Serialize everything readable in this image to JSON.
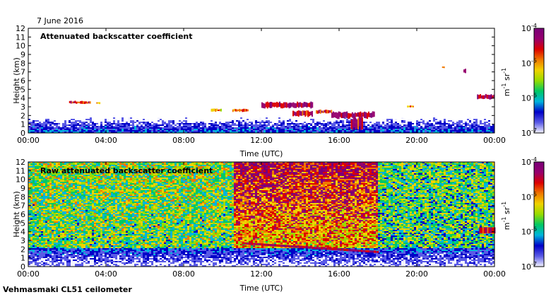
{
  "date_label": "7 June 2016",
  "instrument_label": "Vehmasmaki CL51 ceilometer",
  "chart_data": [
    {
      "type": "heatmap",
      "title": "Attenuated backscatter coefficient",
      "xlabel": "Time (UTC)",
      "ylabel": "Height (km)",
      "x_ticks": [
        "00:00",
        "04:00",
        "08:00",
        "12:00",
        "16:00",
        "20:00",
        "00:00"
      ],
      "y_ticks": [
        "0",
        "1",
        "2",
        "3",
        "4",
        "5",
        "6",
        "7",
        "8",
        "9",
        "10",
        "11",
        "12"
      ],
      "xlim_hours": [
        0,
        24
      ],
      "ylim_km": [
        0,
        12
      ],
      "colorbar": {
        "label_base": "m",
        "label_exp1": "-1",
        "label_mid": " sr",
        "label_exp2": "-1",
        "tick_base": "10",
        "ticks": [
          "-7",
          "-6",
          "-5",
          "-4"
        ],
        "scale": "log",
        "colormap": [
          "#f4f4ff",
          "#5a5ae6",
          "#0000c8",
          "#00b4dc",
          "#00c864",
          "#96dc00",
          "#f0d200",
          "#f07800",
          "#dc0000",
          "#96006e",
          "#780078"
        ]
      },
      "features": [
        {
          "kind": "boundary_layer",
          "start_h": 0,
          "end_h": 24,
          "top_km": 1.5,
          "level": 0.25
        },
        {
          "kind": "cloud",
          "start_h": 2.1,
          "end_h": 3.2,
          "base_km": 3.3,
          "top_km": 3.7,
          "level": 0.75
        },
        {
          "kind": "cloud",
          "start_h": 3.5,
          "end_h": 3.7,
          "base_km": 3.3,
          "top_km": 3.6,
          "level": 0.7
        },
        {
          "kind": "cloud",
          "start_h": 9.4,
          "end_h": 9.9,
          "base_km": 2.4,
          "top_km": 2.8,
          "level": 0.65
        },
        {
          "kind": "cloud",
          "start_h": 10.5,
          "end_h": 11.3,
          "base_km": 2.4,
          "top_km": 2.8,
          "level": 0.7
        },
        {
          "kind": "cloud",
          "start_h": 12.0,
          "end_h": 14.6,
          "base_km": 2.8,
          "top_km": 3.6,
          "level": 0.85
        },
        {
          "kind": "cloud",
          "start_h": 13.6,
          "end_h": 14.6,
          "base_km": 1.8,
          "top_km": 2.6,
          "level": 0.8
        },
        {
          "kind": "cloud",
          "start_h": 14.8,
          "end_h": 15.6,
          "base_km": 2.2,
          "top_km": 2.7,
          "level": 0.8
        },
        {
          "kind": "cloud",
          "start_h": 15.6,
          "end_h": 17.8,
          "base_km": 1.6,
          "top_km": 2.5,
          "level": 0.85
        },
        {
          "kind": "precip",
          "start_h": 16.6,
          "end_h": 17.2,
          "base_km": 0.3,
          "top_km": 2.0,
          "level": 0.8
        },
        {
          "kind": "cloud",
          "start_h": 19.5,
          "end_h": 19.8,
          "base_km": 2.9,
          "top_km": 3.2,
          "level": 0.65
        },
        {
          "kind": "cloud",
          "start_h": 23.1,
          "end_h": 24,
          "base_km": 3.8,
          "top_km": 4.5,
          "level": 0.85
        },
        {
          "kind": "cloud",
          "start_h": 22.4,
          "end_h": 22.5,
          "base_km": 6.8,
          "top_km": 7.4,
          "level": 0.9
        },
        {
          "kind": "cloud",
          "start_h": 21.3,
          "end_h": 21.4,
          "base_km": 7.4,
          "top_km": 7.7,
          "level": 0.6
        }
      ]
    },
    {
      "type": "heatmap",
      "title": "Raw attenuated backscatter coefficient",
      "xlabel": "Time (UTC)",
      "ylabel": "Height (km)",
      "x_ticks": [
        "00:00",
        "04:00",
        "08:00",
        "12:00",
        "16:00",
        "20:00",
        "00:00"
      ],
      "y_ticks": [
        "0",
        "1",
        "2",
        "3",
        "4",
        "5",
        "6",
        "7",
        "8",
        "9",
        "10",
        "11",
        "12"
      ],
      "xlim_hours": [
        0,
        24
      ],
      "ylim_km": [
        0,
        12
      ],
      "colorbar": {
        "label_base": "m",
        "label_exp1": "-1",
        "label_mid": " sr",
        "label_exp2": "-1",
        "tick_base": "10",
        "ticks": [
          "-7",
          "-6",
          "-5",
          "-4"
        ],
        "scale": "log",
        "colormap": [
          "#f4f4ff",
          "#5a5ae6",
          "#0000c8",
          "#00b4dc",
          "#00c864",
          "#96dc00",
          "#f0d200",
          "#f07800",
          "#dc0000",
          "#96006e",
          "#780078"
        ]
      },
      "features": [
        {
          "kind": "noise_day",
          "start_h": 10.5,
          "end_h": 18.0,
          "level": 0.72
        },
        {
          "kind": "noise_morning",
          "start_h": 0,
          "end_h": 10.5,
          "level": 0.55
        },
        {
          "kind": "noise_evening",
          "start_h": 18.0,
          "end_h": 24,
          "level": 0.5
        },
        {
          "kind": "layer_line",
          "start_h": 11.0,
          "end_h": 18.0,
          "base_km": 1.8,
          "top_km": 2.8,
          "level": 0.85
        },
        {
          "kind": "cloud",
          "start_h": 23.2,
          "end_h": 24,
          "base_km": 3.8,
          "top_km": 4.5,
          "level": 0.8
        }
      ]
    }
  ]
}
